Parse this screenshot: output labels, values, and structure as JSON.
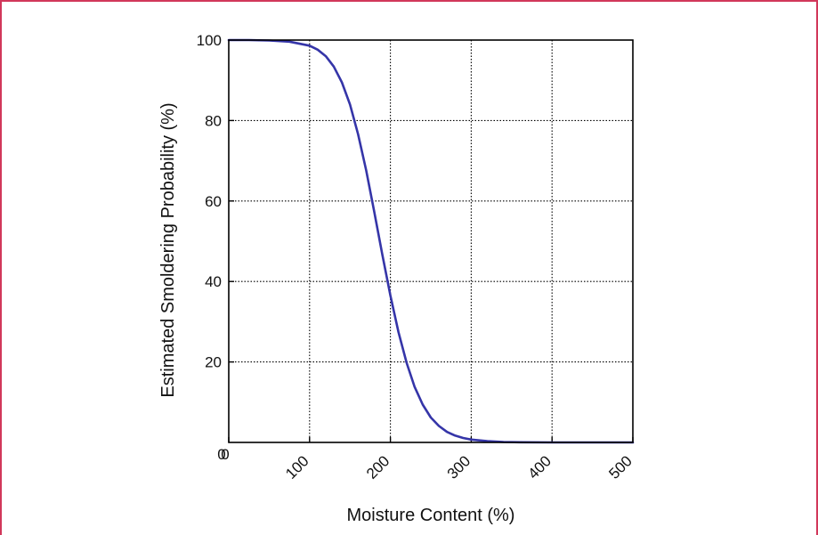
{
  "chart_data": {
    "type": "line",
    "xlabel": "Moisture Content (%)",
    "ylabel": "Estimated Smoldering Probability  (%)",
    "xlim": [
      0,
      500
    ],
    "ylim": [
      0,
      100
    ],
    "xticks": [
      0,
      100,
      200,
      300,
      400,
      500
    ],
    "yticks": [
      20,
      40,
      60,
      80,
      100
    ],
    "ytick_zero_label": "0",
    "grid": true,
    "series": [
      {
        "color": "#3535a8",
        "x": [
          0,
          25,
          50,
          75,
          100,
          110,
          120,
          130,
          140,
          150,
          160,
          170,
          180,
          190,
          200,
          210,
          220,
          230,
          240,
          250,
          260,
          270,
          280,
          290,
          300,
          320,
          340,
          360,
          400,
          450,
          500
        ],
        "y": [
          100,
          100,
          99.9,
          99.6,
          98.6,
          97.6,
          96,
          93.4,
          89.5,
          84,
          76.6,
          67.6,
          57.4,
          46.7,
          36.5,
          27.4,
          19.8,
          13.8,
          9.4,
          6.2,
          4.1,
          2.6,
          1.7,
          1.1,
          0.7,
          0.3,
          0.1,
          0.04,
          0,
          0,
          0
        ]
      }
    ],
    "colors": {
      "frame_border": "#d1375a",
      "axes": "#000000",
      "grid": "#000000"
    }
  }
}
